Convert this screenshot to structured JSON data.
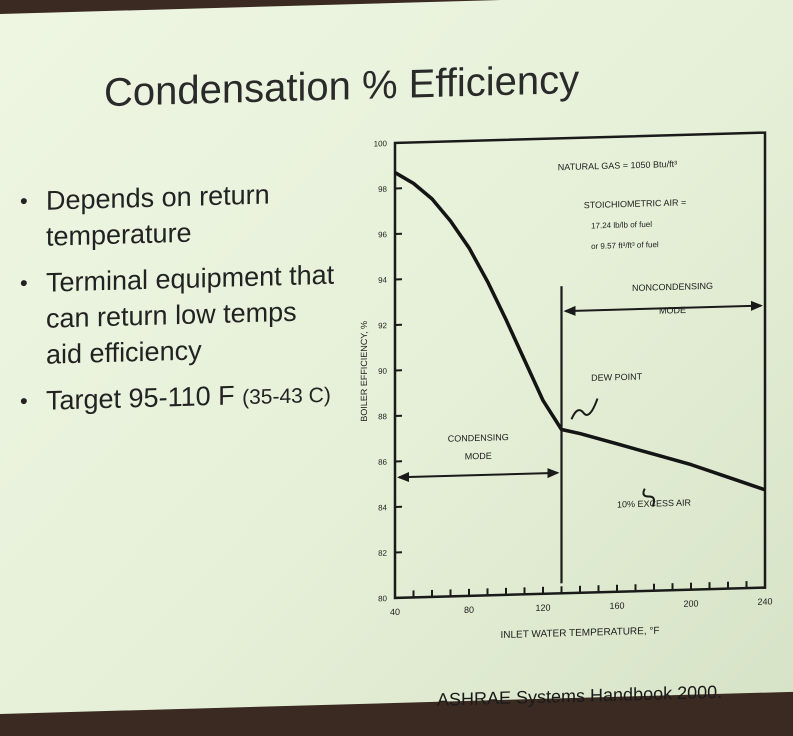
{
  "slide": {
    "title": "Condensation % Efficiency",
    "bullets": [
      {
        "text": "Depends on return temperature",
        "suffix": ""
      },
      {
        "text": "Terminal equipment that can return low temps aid efficiency",
        "suffix": ""
      },
      {
        "text": "Target 95-110 F ",
        "suffix": "(35-43 C)"
      }
    ],
    "source": "ASHRAE Systems Handbook 2000."
  },
  "chart_data": {
    "type": "line",
    "xlabel": "INLET WATER TEMPERATURE, °F",
    "ylabel": "BOILER EFFICIENCY, %",
    "xlim": [
      40,
      240
    ],
    "ylim": [
      80,
      100
    ],
    "x_ticks": [
      40,
      80,
      120,
      160,
      200,
      240
    ],
    "y_ticks": [
      80,
      82,
      84,
      86,
      88,
      90,
      92,
      94,
      96,
      98,
      100
    ],
    "series": [
      {
        "x": [
          40,
          50,
          60,
          70,
          80,
          90,
          100,
          110,
          120,
          130,
          140,
          160,
          180,
          200,
          220,
          240
        ],
        "y": [
          98.7,
          98.2,
          97.5,
          96.5,
          95.3,
          93.8,
          92.1,
          90.3,
          88.5,
          87.2,
          87.0,
          86.5,
          86.0,
          85.5,
          84.9,
          84.3
        ]
      }
    ],
    "annotations": [
      {
        "text": "NATURAL GAS = 1050 Btu/ft³"
      },
      {
        "text": "STOICHIOMETRIC AIR ="
      },
      {
        "text": "17.24 lb/lb of fuel"
      },
      {
        "text": "or 9.57 ft³/ft³ of fuel"
      },
      {
        "text": "NONCONDENSING"
      },
      {
        "text": "MODE"
      },
      {
        "text": "DEW POINT"
      },
      {
        "text": "CONDENSING"
      },
      {
        "text": "MODE"
      },
      {
        "text": "10% EXCESS AIR"
      }
    ],
    "dew_point_x": 130
  }
}
